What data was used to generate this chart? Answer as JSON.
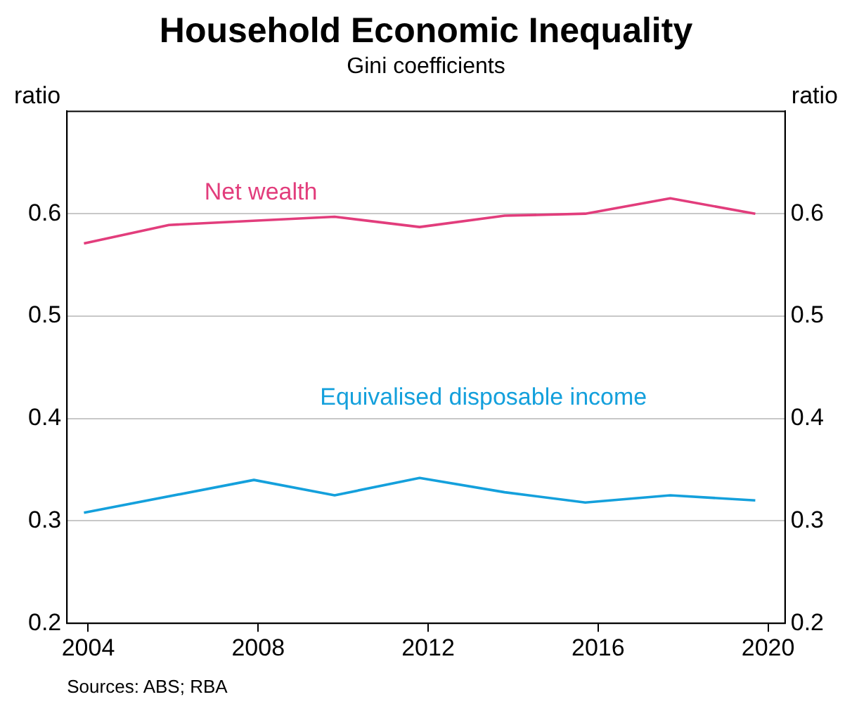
{
  "chart_data": {
    "type": "line",
    "title": "Household Economic Inequality",
    "subtitle": "Gini coefficients",
    "ylabel": "ratio",
    "y2label": "ratio",
    "series": [
      {
        "name": "Net wealth",
        "color": "#e23d7c",
        "x": [
          2003.9,
          2005.9,
          2009.8,
          2011.8,
          2013.8,
          2015.7,
          2017.7,
          2019.7
        ],
        "values": [
          0.571,
          0.589,
          0.597,
          0.587,
          0.598,
          0.6,
          0.615,
          0.6
        ]
      },
      {
        "name": "Equivalised disposable income",
        "color": "#14a0dc",
        "x": [
          2003.9,
          2007.9,
          2009.8,
          2011.8,
          2013.8,
          2015.7,
          2017.7,
          2019.7
        ],
        "values": [
          0.308,
          0.34,
          0.325,
          0.342,
          0.328,
          0.318,
          0.325,
          0.32
        ]
      }
    ],
    "xlim": [
      2003.5,
      2020.4
    ],
    "xticks": [
      2004,
      2008,
      2012,
      2016,
      2020
    ],
    "ylim": [
      0.2,
      0.7
    ],
    "yticks": [
      0.2,
      0.3,
      0.4,
      0.5,
      0.6
    ],
    "y2lim": [
      0.2,
      0.7
    ],
    "y2ticks": [
      0.2,
      0.3,
      0.4,
      0.5,
      0.6
    ],
    "grid": "y",
    "legend": false,
    "marker": "none",
    "line_style": "solid",
    "annotations": [
      "Sources: ABS; RBA"
    ]
  }
}
